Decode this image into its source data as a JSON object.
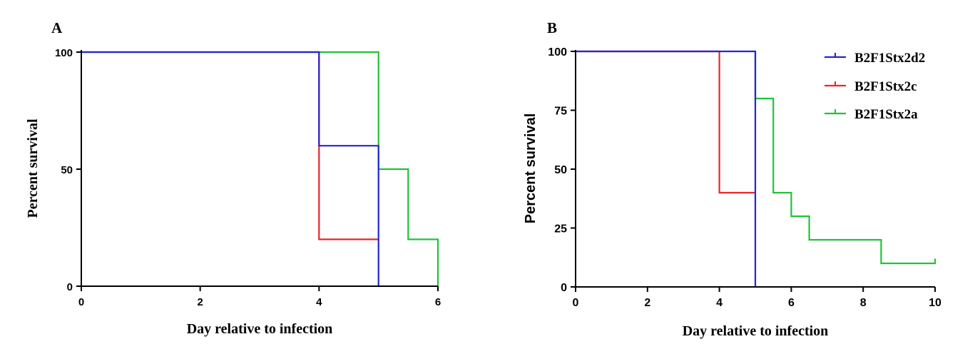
{
  "chart_data": [
    {
      "id": "A",
      "panel_label": "A",
      "type": "line",
      "step": true,
      "xlabel": "Day relative to infection",
      "ylabel": "Percent survival",
      "xlim": [
        0,
        6
      ],
      "ylim": [
        0,
        100
      ],
      "xticks": [
        "0",
        "2",
        "4",
        "6"
      ],
      "xtick_values": [
        0,
        2,
        4,
        6
      ],
      "yticks": [
        "0",
        "50",
        "100"
      ],
      "ytick_values": [
        0,
        50,
        100
      ],
      "series": [
        {
          "name": "B2F1Stx2c",
          "color": "#e8262a",
          "points": [
            [
              0,
              100
            ],
            [
              4,
              100
            ],
            [
              4,
              20
            ],
            [
              5,
              20
            ]
          ]
        },
        {
          "name": "B2F1Stx2a",
          "color": "#22c13a",
          "points": [
            [
              4,
              100
            ],
            [
              5,
              100
            ],
            [
              5,
              50
            ],
            [
              5.5,
              50
            ],
            [
              5.5,
              20
            ],
            [
              6,
              20
            ],
            [
              6,
              0
            ]
          ]
        },
        {
          "name": "B2F1Stx2d2",
          "color": "#2424d6",
          "points": [
            [
              0,
              100
            ],
            [
              4,
              100
            ],
            [
              4,
              60
            ],
            [
              5,
              60
            ],
            [
              5,
              0
            ]
          ]
        }
      ]
    },
    {
      "id": "B",
      "panel_label": "B",
      "type": "line",
      "step": true,
      "xlabel": "Day relative to infection",
      "ylabel": "Percent survival",
      "xlim": [
        0,
        10
      ],
      "ylim": [
        0,
        100
      ],
      "xticks": [
        "0",
        "2",
        "4",
        "6",
        "8",
        "10"
      ],
      "xtick_values": [
        0,
        2,
        4,
        6,
        8,
        10
      ],
      "yticks": [
        "0",
        "25",
        "50",
        "75",
        "100"
      ],
      "ytick_values": [
        0,
        25,
        50,
        75,
        100
      ],
      "legend": [
        "B2F1Stx2d2",
        "B2F1Stx2c",
        "B2F1Stx2a"
      ],
      "legend_position": "top-right",
      "series": [
        {
          "name": "B2F1Stx2c",
          "color": "#e8262a",
          "points": [
            [
              0,
              100
            ],
            [
              4,
              100
            ],
            [
              4,
              40
            ],
            [
              5,
              40
            ]
          ]
        },
        {
          "name": "B2F1Stx2a",
          "color": "#22c13a",
          "points": [
            [
              5,
              100
            ],
            [
              5,
              80
            ],
            [
              5.5,
              80
            ],
            [
              5.5,
              40
            ],
            [
              6,
              40
            ],
            [
              6,
              30
            ],
            [
              6.5,
              30
            ],
            [
              6.5,
              20
            ],
            [
              8.5,
              20
            ],
            [
              8.5,
              10
            ],
            [
              10,
              10
            ],
            [
              10,
              12
            ]
          ]
        },
        {
          "name": "B2F1Stx2d2",
          "color": "#2424d6",
          "points": [
            [
              0,
              100
            ],
            [
              5,
              100
            ],
            [
              5,
              0
            ]
          ]
        }
      ]
    }
  ]
}
